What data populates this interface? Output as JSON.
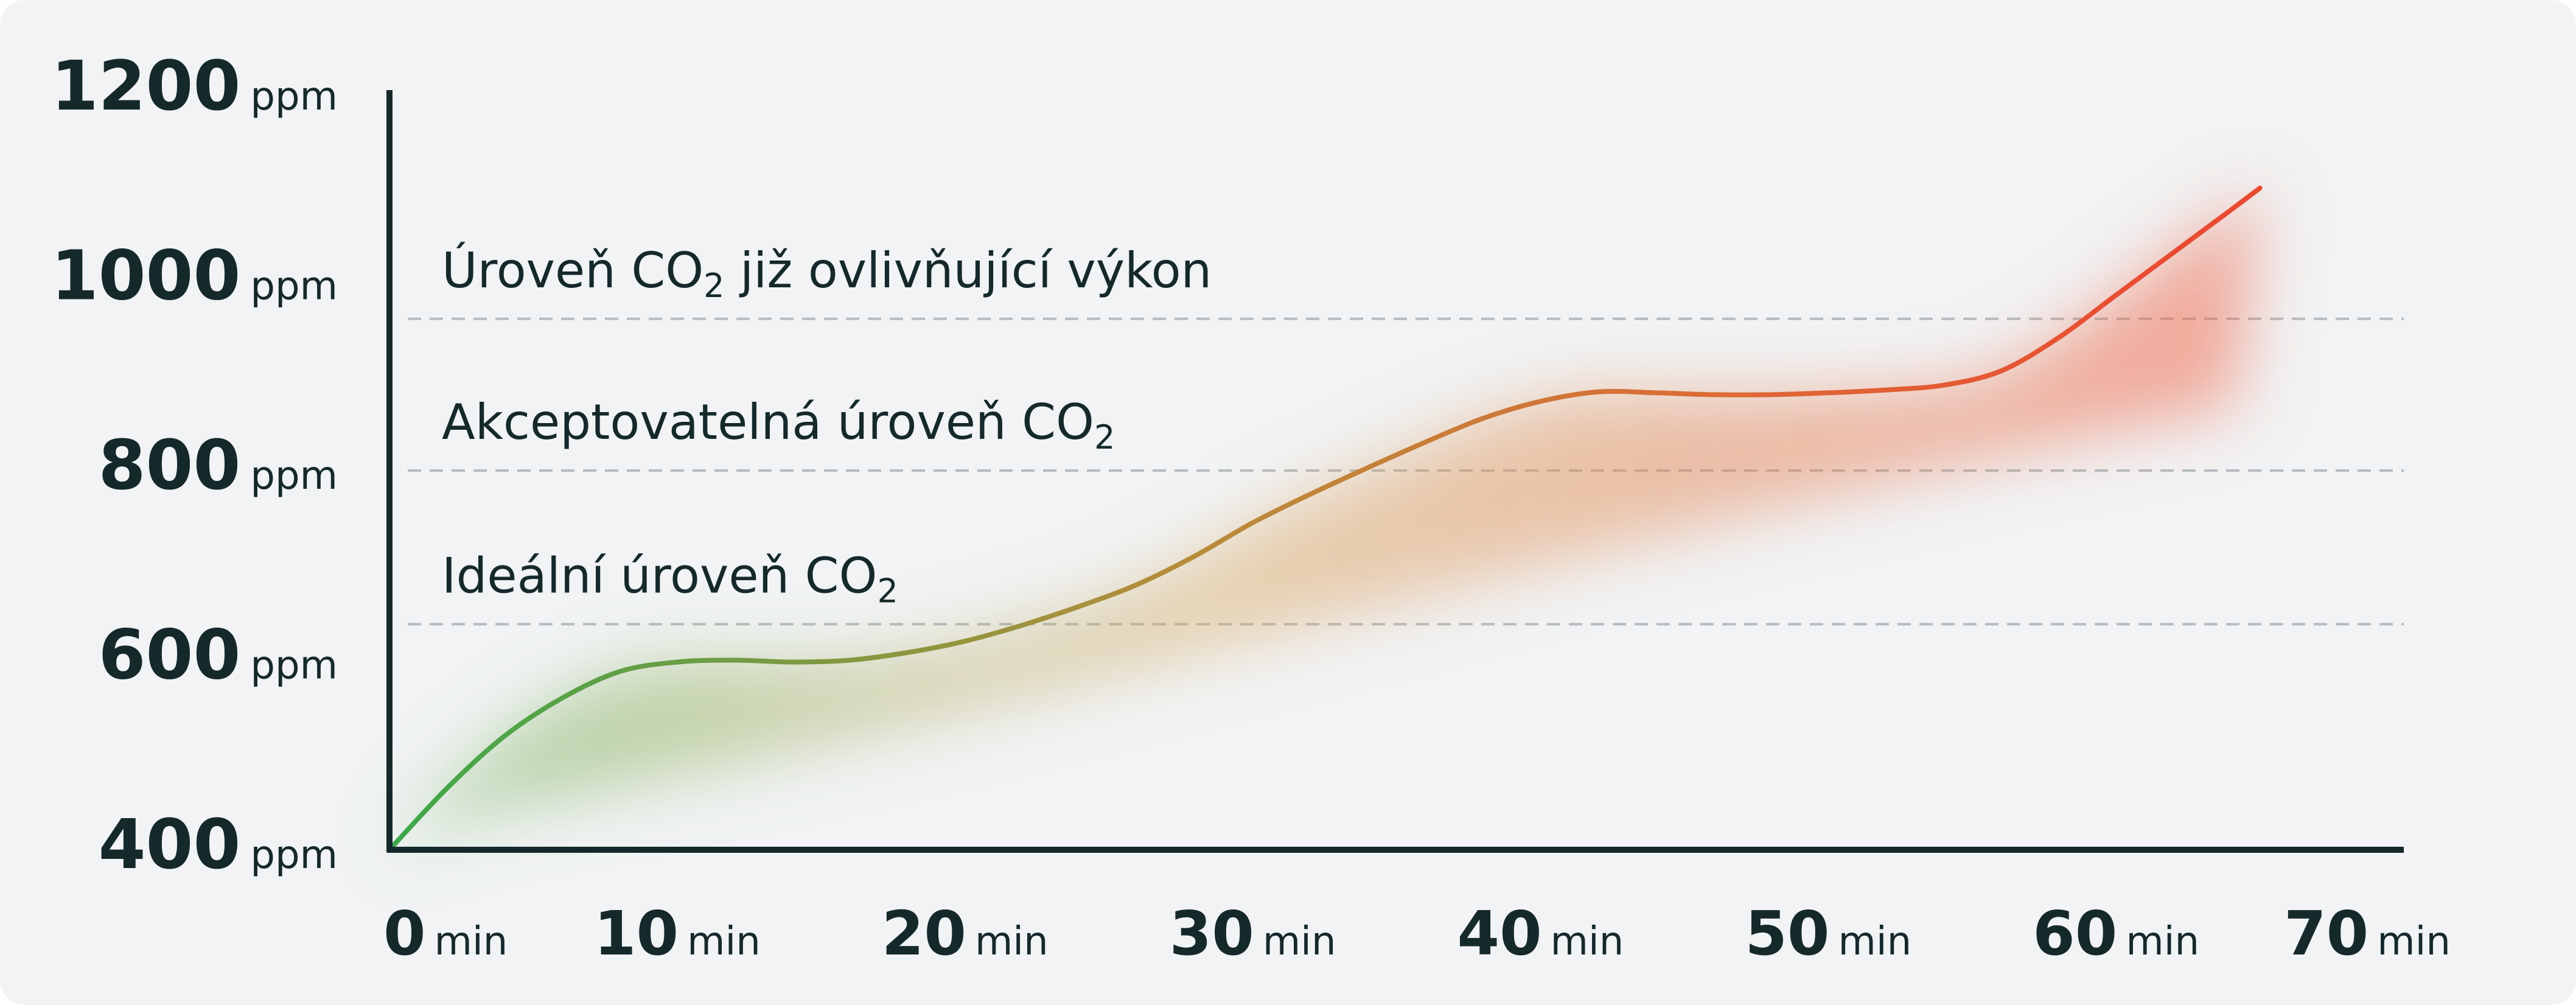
{
  "chart_data": {
    "type": "line",
    "x_unit": "min",
    "y_unit": "ppm",
    "x_ticks": [
      0,
      10,
      20,
      30,
      40,
      50,
      60,
      70
    ],
    "y_ticks": [
      400,
      600,
      800,
      1000,
      1200
    ],
    "xlim": [
      0,
      70
    ],
    "ylim": [
      400,
      1200
    ],
    "grid": false,
    "thresholds": [
      {
        "value": 960,
        "label_prefix": "Úroveň CO",
        "label_sub": "2",
        "label_suffix": " již ovlivňující výkon"
      },
      {
        "value": 800,
        "label_prefix": "Akceptovatelná úroveň CO",
        "label_sub": "2",
        "label_suffix": ""
      },
      {
        "value": 638,
        "label_prefix": "Ideální úroveň CO",
        "label_sub": "2",
        "label_suffix": ""
      }
    ],
    "series": [
      {
        "x": [
          0,
          2,
          4,
          6,
          8,
          10,
          12,
          14,
          16,
          18,
          20,
          22,
          24,
          26,
          28,
          30,
          32,
          34,
          36,
          38,
          40,
          42,
          44,
          46,
          48,
          50,
          52,
          54,
          56,
          58,
          60,
          62,
          64,
          65
        ],
        "y": [
          400,
          465,
          520,
          560,
          588,
          598,
          600,
          598,
          600,
          608,
          620,
          637,
          657,
          680,
          710,
          745,
          775,
          803,
          830,
          855,
          873,
          883,
          882,
          880,
          880,
          882,
          885,
          890,
          905,
          940,
          985,
          1030,
          1075,
          1098
        ]
      }
    ],
    "colors": {
      "axis": "#15292b",
      "threshold_line": "#b5bcc1",
      "line_start": "#3ea84a",
      "line_mid": "#b88c3a",
      "line_end": "#e94a32"
    }
  }
}
